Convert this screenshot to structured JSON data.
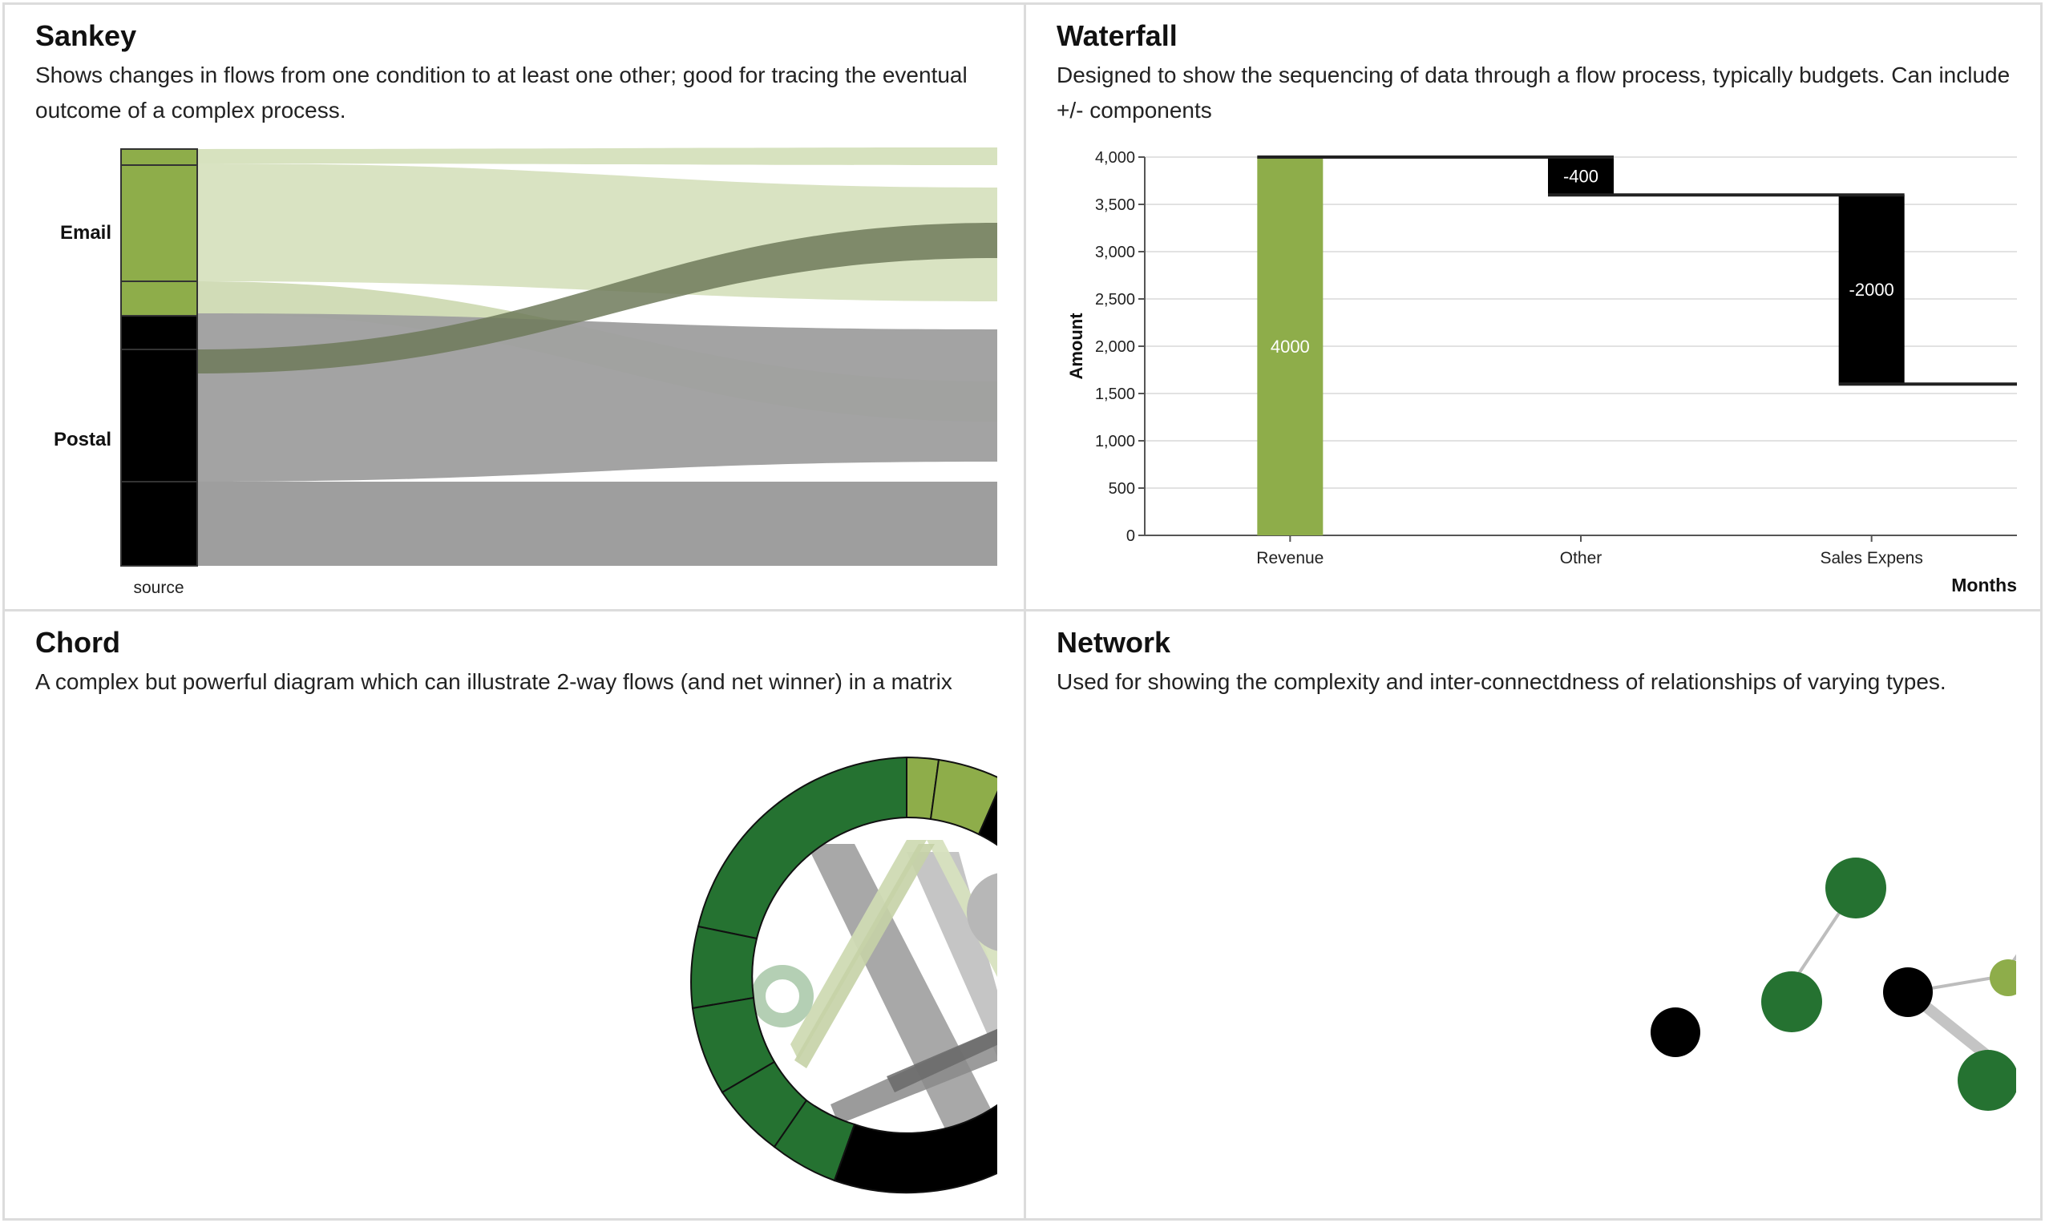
{
  "colors": {
    "light_green": "#8ead4a",
    "pale_green": "#d7e2bf",
    "dark_green": "#257231",
    "black": "#000000",
    "gray": "#9e9e9e",
    "grid": "#e2e2e2"
  },
  "panels": {
    "sankey": {
      "title": "Sankey",
      "description": "Shows changes in flows from one condition to at least one other; good for tracing the eventual outcome of a complex process."
    },
    "waterfall": {
      "title": "Waterfall",
      "description": "Designed to show the sequencing of data through a flow process, typically budgets. Can include +/- components"
    },
    "chord": {
      "title": "Chord",
      "description": "A complex but powerful diagram which can illustrate 2-way flows (and net winner) in a matrix"
    },
    "network": {
      "title": "Network",
      "description": "Used for showing the complexity and inter-connectdness of relationships of varying types."
    }
  },
  "chart_data": [
    {
      "type": "sankey",
      "title": "Sankey",
      "axis_label": "source",
      "nodes": [
        {
          "name": "Email",
          "color": "#8ead4a"
        },
        {
          "name": "Postal",
          "color": "#000000"
        }
      ]
    },
    {
      "type": "waterfall",
      "title": "Waterfall",
      "xlabel": "Months",
      "ylabel": "Amount",
      "ylim": [
        0,
        4000
      ],
      "yticks": [
        "0",
        "500",
        "1,000",
        "1,500",
        "2,000",
        "2,500",
        "3,000",
        "3,500",
        "4,000"
      ],
      "categories": [
        "Revenue",
        "Other",
        "Sales Expens"
      ],
      "values": [
        4000,
        -400,
        -2000
      ],
      "labels": [
        "4000",
        "-400",
        "-2000"
      ],
      "grid": true
    },
    {
      "type": "chord",
      "title": "Chord"
    },
    {
      "type": "network",
      "title": "Network"
    }
  ]
}
